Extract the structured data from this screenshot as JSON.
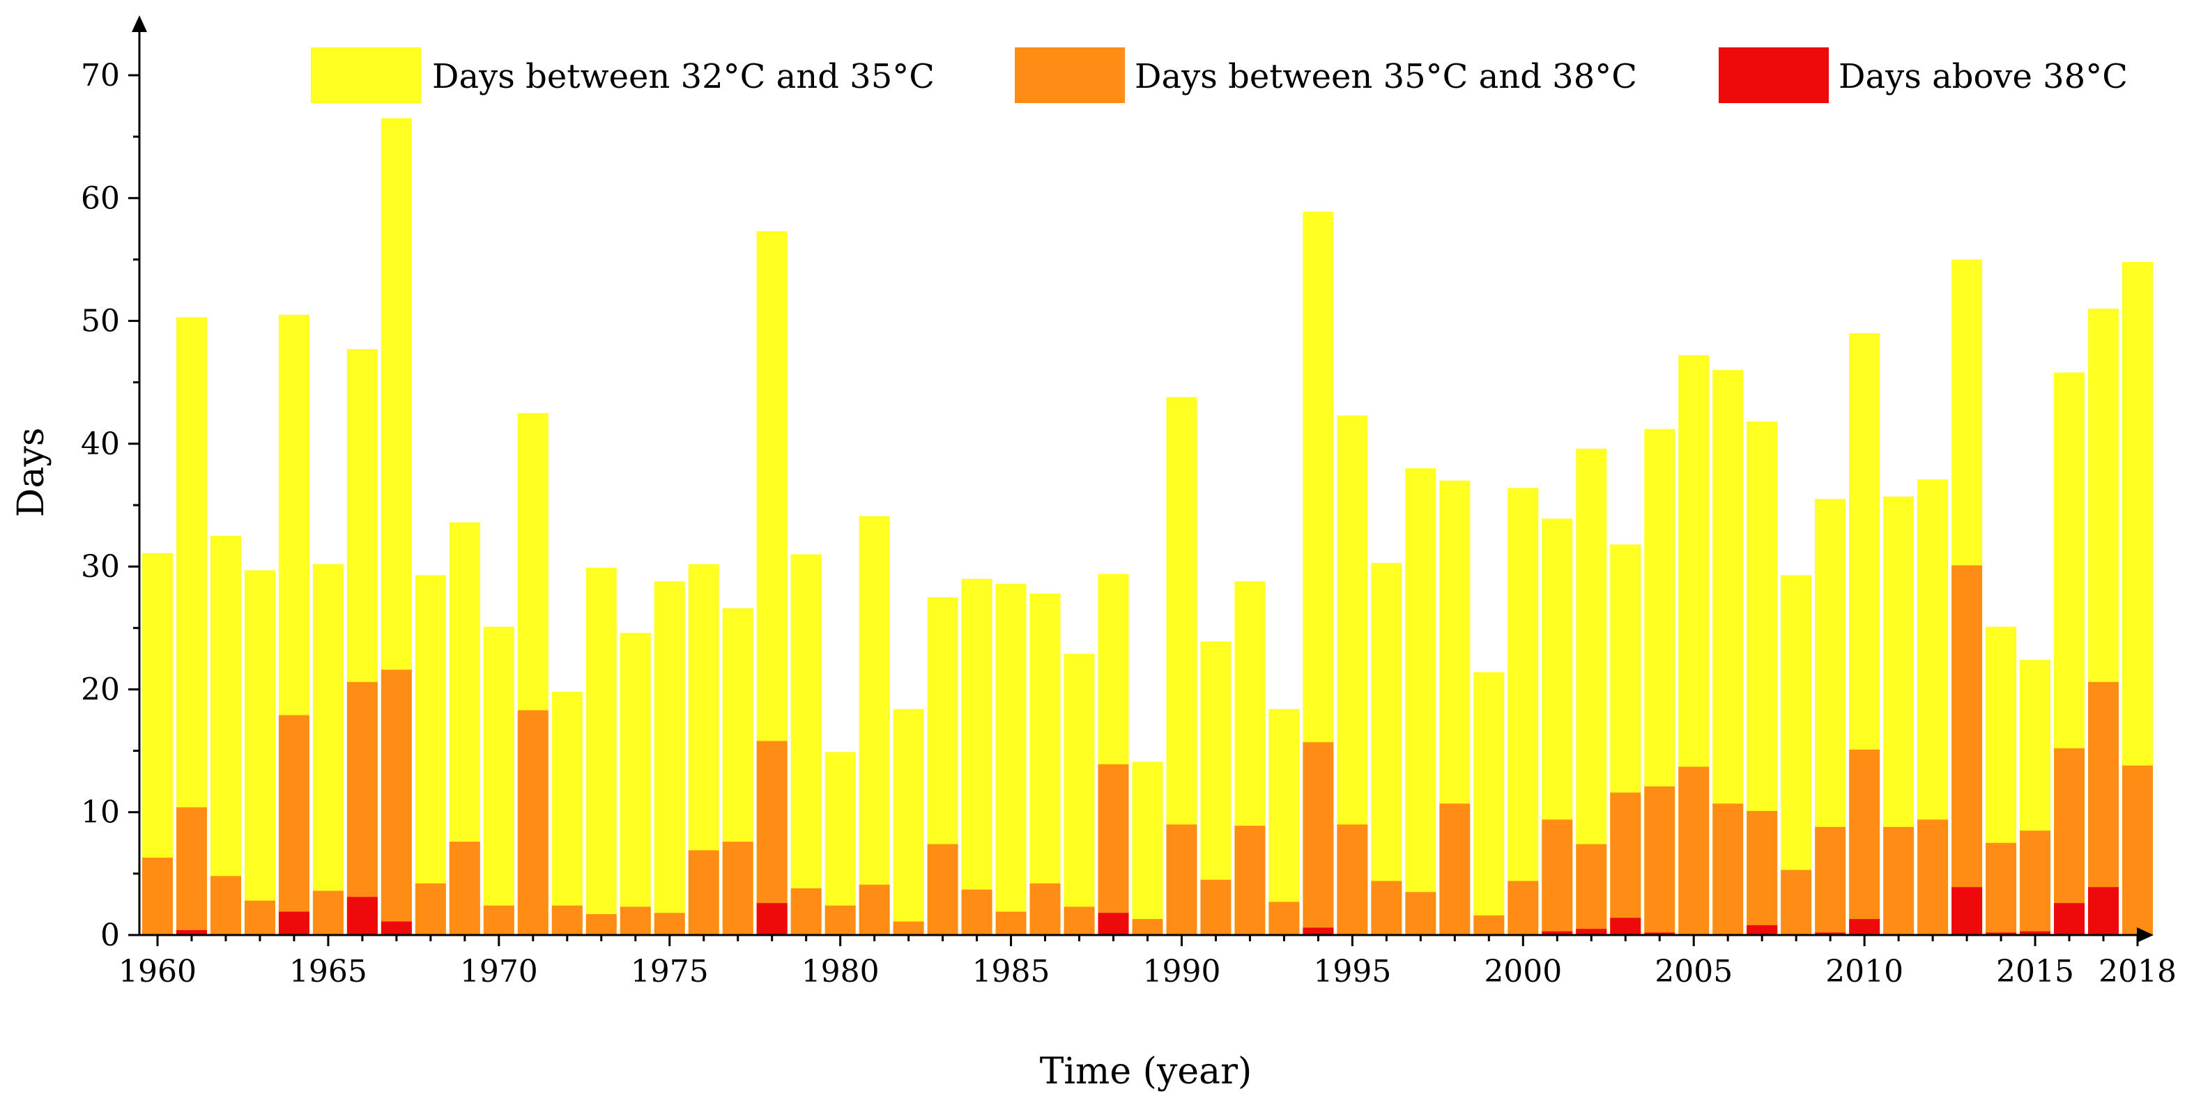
{
  "chart_data": {
    "type": "bar",
    "stacked": true,
    "title": "",
    "xlabel": "Time (year)",
    "ylabel": "Days",
    "ylim": [
      0,
      73
    ],
    "yticks": [
      0,
      10,
      20,
      30,
      40,
      50,
      60,
      70
    ],
    "xtick_labels": [
      "1960",
      "1965",
      "1970",
      "1975",
      "1980",
      "1985",
      "1990",
      "1995",
      "2000",
      "2005",
      "2010",
      "2015",
      "2018"
    ],
    "x": [
      1960,
      1961,
      1962,
      1963,
      1964,
      1965,
      1966,
      1967,
      1968,
      1969,
      1970,
      1971,
      1972,
      1973,
      1974,
      1975,
      1976,
      1977,
      1978,
      1979,
      1980,
      1981,
      1982,
      1983,
      1984,
      1985,
      1986,
      1987,
      1988,
      1989,
      1990,
      1991,
      1992,
      1993,
      1994,
      1995,
      1996,
      1997,
      1998,
      1999,
      2000,
      2001,
      2002,
      2003,
      2004,
      2005,
      2006,
      2007,
      2008,
      2009,
      2010,
      2011,
      2012,
      2013,
      2014,
      2015,
      2016,
      2017,
      2018
    ],
    "legend_position": "top",
    "series": [
      {
        "name": "Days between 32°C and 35°C",
        "color": "#ffff22",
        "totals": [
          31.1,
          50.3,
          32.5,
          29.7,
          50.5,
          30.2,
          47.7,
          66.5,
          29.3,
          33.6,
          25.1,
          42.5,
          19.8,
          29.9,
          24.6,
          28.8,
          30.2,
          26.6,
          57.3,
          31.0,
          14.9,
          34.1,
          18.4,
          27.5,
          29.0,
          28.6,
          27.8,
          22.9,
          29.4,
          14.1,
          43.8,
          23.9,
          28.8,
          18.4,
          58.9,
          42.3,
          30.3,
          38.0,
          37.0,
          21.4,
          36.4,
          33.9,
          39.6,
          31.8,
          41.2,
          47.2,
          46.0,
          41.8,
          29.3,
          35.5,
          49.0,
          35.7,
          37.1,
          55.0,
          25.1,
          22.4,
          45.8,
          51.0,
          54.8
        ]
      },
      {
        "name": "Days between 35°C and 38°C",
        "color": "#ff8c14",
        "totals": [
          6.3,
          10.4,
          4.8,
          2.8,
          17.9,
          3.6,
          20.6,
          21.6,
          4.2,
          7.6,
          2.4,
          18.3,
          2.4,
          1.7,
          2.3,
          1.8,
          6.9,
          7.6,
          15.8,
          3.8,
          2.4,
          4.1,
          1.1,
          7.4,
          3.7,
          1.9,
          4.2,
          2.3,
          13.9,
          1.3,
          9.0,
          4.5,
          8.9,
          2.7,
          15.7,
          9.0,
          4.4,
          3.5,
          10.7,
          1.6,
          4.4,
          9.4,
          7.4,
          11.6,
          12.1,
          13.7,
          10.7,
          10.1,
          5.3,
          8.8,
          15.1,
          8.8,
          9.4,
          30.1,
          7.5,
          8.5,
          15.2,
          20.6,
          13.8
        ]
      },
      {
        "name": "Days above 38°C",
        "color": "#ee0a0a",
        "values": [
          0,
          0.4,
          0,
          0,
          1.9,
          0,
          3.1,
          1.1,
          0,
          0,
          0,
          0,
          0,
          0,
          0,
          0,
          0,
          0,
          2.6,
          0,
          0,
          0,
          0,
          0,
          0,
          0,
          0,
          0,
          1.8,
          0,
          0,
          0,
          0,
          0,
          0.6,
          0,
          0,
          0,
          0,
          0,
          0,
          0.3,
          0.5,
          1.4,
          0.2,
          0,
          0,
          0.8,
          0,
          0.2,
          1.3,
          0,
          0,
          3.9,
          0.2,
          0.3,
          2.6,
          3.9,
          0
        ]
      }
    ]
  }
}
